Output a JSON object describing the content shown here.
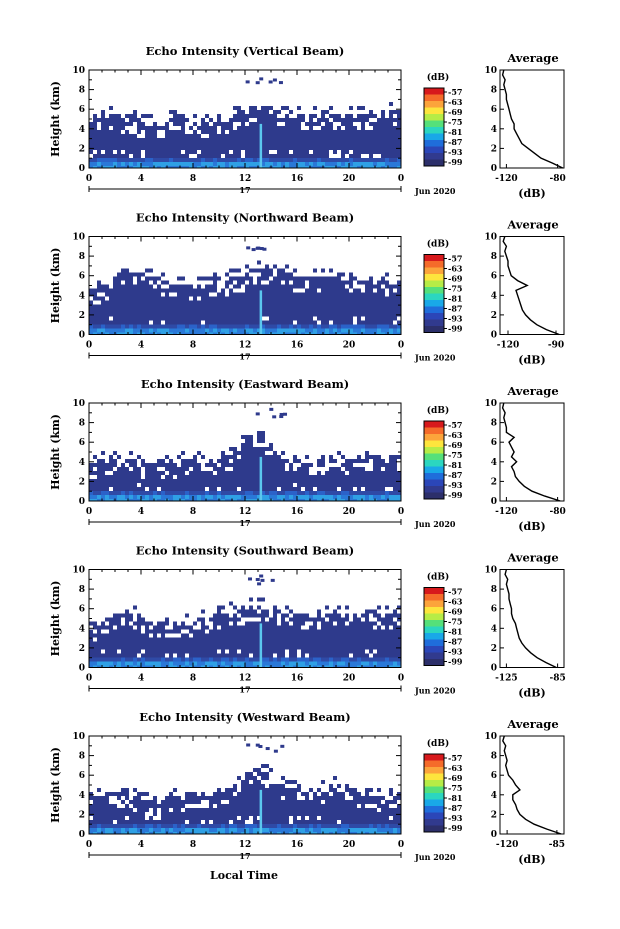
{
  "figure": {
    "bottom_xlabel": "Local Time",
    "date_label": "Jun 2020",
    "day_label": "17",
    "colorbar_unit": "(dB)",
    "colorbar_ticks": [
      "-57",
      "-63",
      "-69",
      "-75",
      "-81",
      "-87",
      "-93",
      "-99"
    ],
    "colorbar_colors": [
      "#d7191c",
      "#f56b2a",
      "#fca43b",
      "#fde53d",
      "#b6ec46",
      "#55e07a",
      "#2bd6c0",
      "#19a8e8",
      "#1f6ddb",
      "#2b46b8",
      "#313a8e",
      "#2c2f6a"
    ],
    "echo_color": "#2e3a8c",
    "near_ground_color": "#2fa0e5"
  },
  "chart_data": [
    {
      "type": "heatmap",
      "title": "Echo Intensity (Vertical Beam)",
      "ylabel": "Height (km)",
      "xlim": [
        0,
        24
      ],
      "ylim": [
        0,
        10
      ],
      "x_ticks": [
        "0",
        "4",
        "8",
        "12",
        "16",
        "20",
        "0"
      ],
      "y_ticks": [
        "0",
        "2",
        "4",
        "6",
        "8",
        "10"
      ],
      "colorbar_range_dB": [
        -99,
        -57
      ],
      "echo_top_km": [
        5.2,
        5.6,
        5.4,
        5.0,
        4.8,
        4.6,
        4.9,
        5.1,
        4.7,
        4.5,
        4.8,
        5.3,
        5.7,
        6.3,
        6.0,
        5.6,
        5.4,
        5.3,
        5.5,
        5.7,
        5.6,
        5.5,
        5.6,
        5.9
      ],
      "average_profile": {
        "title": "Average",
        "xlabel": "(dB)",
        "x_ticks": [
          "-120",
          "-80"
        ],
        "xlim": [
          -125,
          -75
        ],
        "heights_km": [
          0,
          0.5,
          1,
          1.5,
          2,
          2.5,
          3,
          3.5,
          4,
          4.5,
          5,
          5.5,
          6,
          6.5,
          7,
          7.5,
          8,
          8.5,
          9,
          9.5,
          10
        ],
        "dB": [
          -76,
          -84,
          -93,
          -98,
          -103,
          -108,
          -110,
          -112,
          -114,
          -114,
          -116,
          -117,
          -118,
          -119,
          -120,
          -120,
          -121,
          -122,
          -121,
          -123,
          -122
        ]
      }
    },
    {
      "type": "heatmap",
      "title": "Echo Intensity (Northward Beam)",
      "ylabel": "Height (km)",
      "xlim": [
        0,
        24
      ],
      "ylim": [
        0,
        10
      ],
      "x_ticks": [
        "0",
        "4",
        "8",
        "12",
        "16",
        "20",
        "0"
      ],
      "y_ticks": [
        "0",
        "2",
        "4",
        "6",
        "8",
        "10"
      ],
      "colorbar_range_dB": [
        -99,
        -57
      ],
      "echo_top_km": [
        4.6,
        5.0,
        6.0,
        6.2,
        6.0,
        5.6,
        5.3,
        5.1,
        5.0,
        5.3,
        5.5,
        5.8,
        6.2,
        6.8,
        6.5,
        6.2,
        6.0,
        5.9,
        6.0,
        6.1,
        5.9,
        5.6,
        5.4,
        5.6
      ],
      "average_profile": {
        "title": "Average",
        "xlabel": "(dB)",
        "x_ticks": [
          "-120",
          "-90"
        ],
        "xlim": [
          -125,
          -85
        ],
        "heights_km": [
          0,
          0.5,
          1,
          1.5,
          2,
          2.5,
          3,
          3.5,
          4,
          4.5,
          5,
          5.5,
          6,
          6.5,
          7,
          7.5,
          8,
          8.5,
          9,
          9.5,
          10
        ],
        "dB": [
          -88,
          -96,
          -102,
          -106,
          -109,
          -111,
          -112,
          -113,
          -114,
          -115,
          -108,
          -114,
          -118,
          -119,
          -120,
          -120,
          -121,
          -122,
          -121,
          -123,
          -122
        ]
      }
    },
    {
      "type": "heatmap",
      "title": "Echo Intensity (Eastward Beam)",
      "ylabel": "Height (km)",
      "xlim": [
        0,
        24
      ],
      "ylim": [
        0,
        10
      ],
      "x_ticks": [
        "0",
        "4",
        "8",
        "12",
        "16",
        "20",
        "0"
      ],
      "y_ticks": [
        "0",
        "2",
        "4",
        "6",
        "8",
        "10"
      ],
      "colorbar_range_dB": [
        -99,
        -57
      ],
      "echo_top_km": [
        3.9,
        4.2,
        4.4,
        4.2,
        4.0,
        3.8,
        3.9,
        4.1,
        4.2,
        4.0,
        4.3,
        4.6,
        6.4,
        7.0,
        5.2,
        4.4,
        4.1,
        4.0,
        4.0,
        4.2,
        4.1,
        4.3,
        4.4,
        4.5
      ],
      "average_profile": {
        "title": "Average",
        "xlabel": "(dB)",
        "x_ticks": [
          "-120",
          "-80"
        ],
        "xlim": [
          -125,
          -75
        ],
        "heights_km": [
          0,
          0.5,
          1,
          1.5,
          2,
          2.5,
          3,
          3.5,
          4,
          4.5,
          5,
          5.5,
          6,
          6.5,
          7,
          7.5,
          8,
          8.5,
          9,
          9.5,
          10
        ],
        "dB": [
          -78,
          -90,
          -100,
          -106,
          -110,
          -113,
          -114,
          -116,
          -112,
          -116,
          -114,
          -116,
          -118,
          -114,
          -120,
          -120,
          -121,
          -122,
          -121,
          -123,
          -122
        ]
      }
    },
    {
      "type": "heatmap",
      "title": "Echo Intensity (Southward Beam)",
      "ylabel": "Height (km)",
      "xlim": [
        0,
        24
      ],
      "ylim": [
        0,
        10
      ],
      "x_ticks": [
        "0",
        "4",
        "8",
        "12",
        "16",
        "20",
        "0"
      ],
      "y_ticks": [
        "0",
        "2",
        "4",
        "6",
        "8",
        "10"
      ],
      "colorbar_range_dB": [
        -99,
        -57
      ],
      "echo_top_km": [
        4.0,
        4.4,
        5.6,
        5.8,
        5.2,
        4.6,
        4.6,
        4.9,
        4.8,
        5.0,
        5.6,
        5.8,
        6.1,
        6.4,
        6.0,
        5.5,
        5.4,
        5.2,
        5.6,
        5.8,
        5.5,
        5.3,
        5.4,
        5.6
      ],
      "average_profile": {
        "title": "Average",
        "xlabel": "(dB)",
        "x_ticks": [
          "-125",
          "-85"
        ],
        "xlim": [
          -130,
          -80
        ],
        "heights_km": [
          0,
          0.5,
          1,
          1.5,
          2,
          2.5,
          3,
          3.5,
          4,
          4.5,
          5,
          5.5,
          6,
          6.5,
          7,
          7.5,
          8,
          8.5,
          9,
          9.5,
          10
        ],
        "dB": [
          -86,
          -94,
          -101,
          -106,
          -110,
          -113,
          -115,
          -116,
          -117,
          -118,
          -120,
          -121,
          -121,
          -122,
          -123,
          -123,
          -124,
          -125,
          -124,
          -126,
          -125
        ]
      }
    },
    {
      "type": "heatmap",
      "title": "Echo Intensity (Westward Beam)",
      "ylabel": "Height (km)",
      "xlim": [
        0,
        24
      ],
      "ylim": [
        0,
        10
      ],
      "x_ticks": [
        "0",
        "4",
        "8",
        "12",
        "16",
        "20",
        "0"
      ],
      "y_ticks": [
        "0",
        "2",
        "4",
        "6",
        "8",
        "10"
      ],
      "colorbar_range_dB": [
        -99,
        -57
      ],
      "echo_top_km": [
        3.6,
        4.0,
        4.4,
        4.0,
        3.6,
        3.5,
        3.8,
        4.0,
        4.1,
        4.2,
        4.6,
        5.0,
        6.5,
        6.9,
        5.6,
        4.8,
        4.5,
        4.4,
        4.8,
        5.0,
        4.7,
        4.2,
        4.0,
        4.1
      ],
      "average_profile": {
        "title": "Average",
        "xlabel": "(dB)",
        "x_ticks": [
          "-120",
          "-85"
        ],
        "xlim": [
          -125,
          -80
        ],
        "heights_km": [
          0,
          0.5,
          1,
          1.5,
          2,
          2.5,
          3,
          3.5,
          4,
          4.5,
          5,
          5.5,
          6,
          6.5,
          7,
          7.5,
          8,
          8.5,
          9,
          9.5,
          10
        ],
        "dB": [
          -82,
          -92,
          -101,
          -107,
          -111,
          -113,
          -114,
          -116,
          -116,
          -111,
          -114,
          -116,
          -119,
          -120,
          -121,
          -120,
          -121,
          -122,
          -121,
          -123,
          -122
        ]
      }
    }
  ]
}
